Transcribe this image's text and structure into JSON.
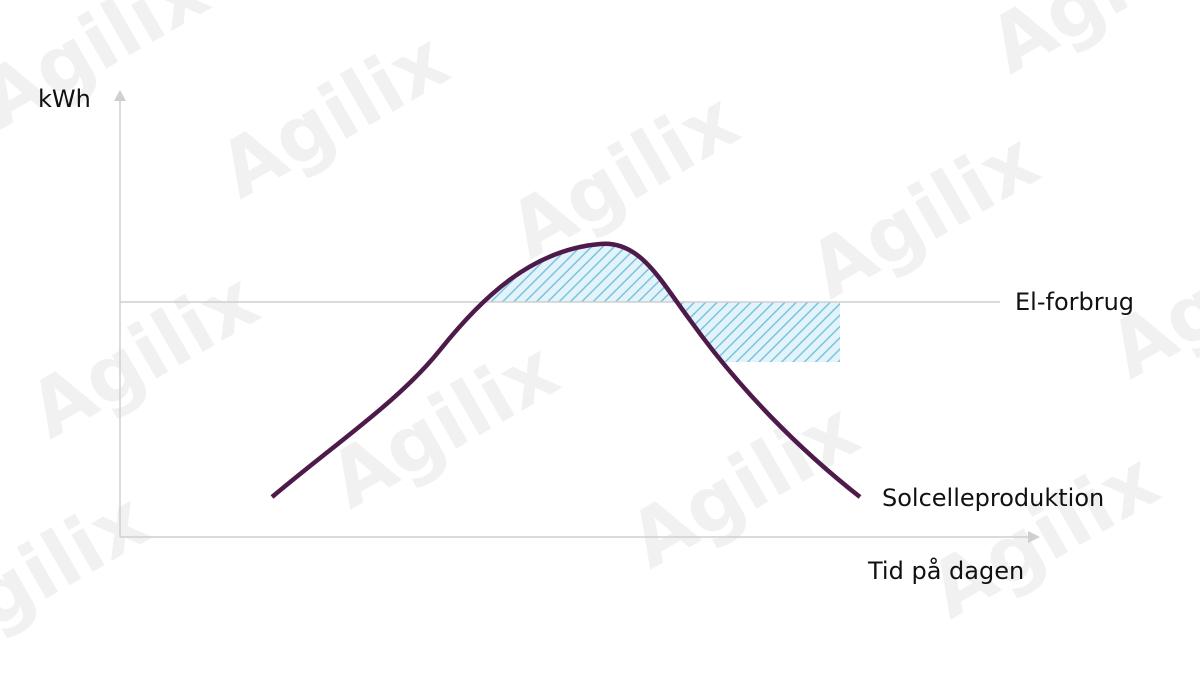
{
  "watermark": "Agilix",
  "y_axis_label": "kWh",
  "x_axis_label": "Tid på dagen",
  "consumption_label": "El-forbrug",
  "production_label": "Solcelleproduktion"
}
